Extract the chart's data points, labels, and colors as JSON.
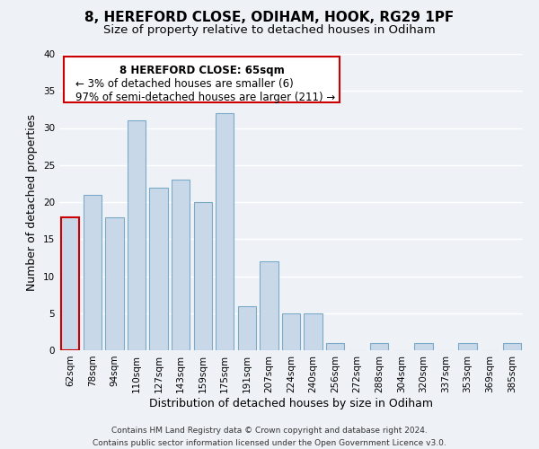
{
  "title": "8, HEREFORD CLOSE, ODIHAM, HOOK, RG29 1PF",
  "subtitle": "Size of property relative to detached houses in Odiham",
  "xlabel": "Distribution of detached houses by size in Odiham",
  "ylabel": "Number of detached properties",
  "bar_labels": [
    "62sqm",
    "78sqm",
    "94sqm",
    "110sqm",
    "127sqm",
    "143sqm",
    "159sqm",
    "175sqm",
    "191sqm",
    "207sqm",
    "224sqm",
    "240sqm",
    "256sqm",
    "272sqm",
    "288sqm",
    "304sqm",
    "320sqm",
    "337sqm",
    "353sqm",
    "369sqm",
    "385sqm"
  ],
  "bar_values": [
    18,
    21,
    18,
    31,
    22,
    23,
    20,
    32,
    6,
    12,
    5,
    5,
    1,
    0,
    1,
    0,
    1,
    0,
    1,
    0,
    1
  ],
  "bar_color": "#c8d8e8",
  "bar_edge_color": "#7aaac8",
  "highlight_index": 0,
  "highlight_edge_color": "#cc0000",
  "ylim": [
    0,
    40
  ],
  "yticks": [
    0,
    5,
    10,
    15,
    20,
    25,
    30,
    35,
    40
  ],
  "annotation_title": "8 HEREFORD CLOSE: 65sqm",
  "annotation_line1": "← 3% of detached houses are smaller (6)",
  "annotation_line2": "97% of semi-detached houses are larger (211) →",
  "annotation_box_edge": "#cc0000",
  "footer_line1": "Contains HM Land Registry data © Crown copyright and database right 2024.",
  "footer_line2": "Contains public sector information licensed under the Open Government Licence v3.0.",
  "background_color": "#eef2f7",
  "title_fontsize": 11,
  "subtitle_fontsize": 9.5,
  "axis_label_fontsize": 9,
  "tick_fontsize": 7.5,
  "annotation_fontsize": 8.5,
  "footer_fontsize": 6.5
}
